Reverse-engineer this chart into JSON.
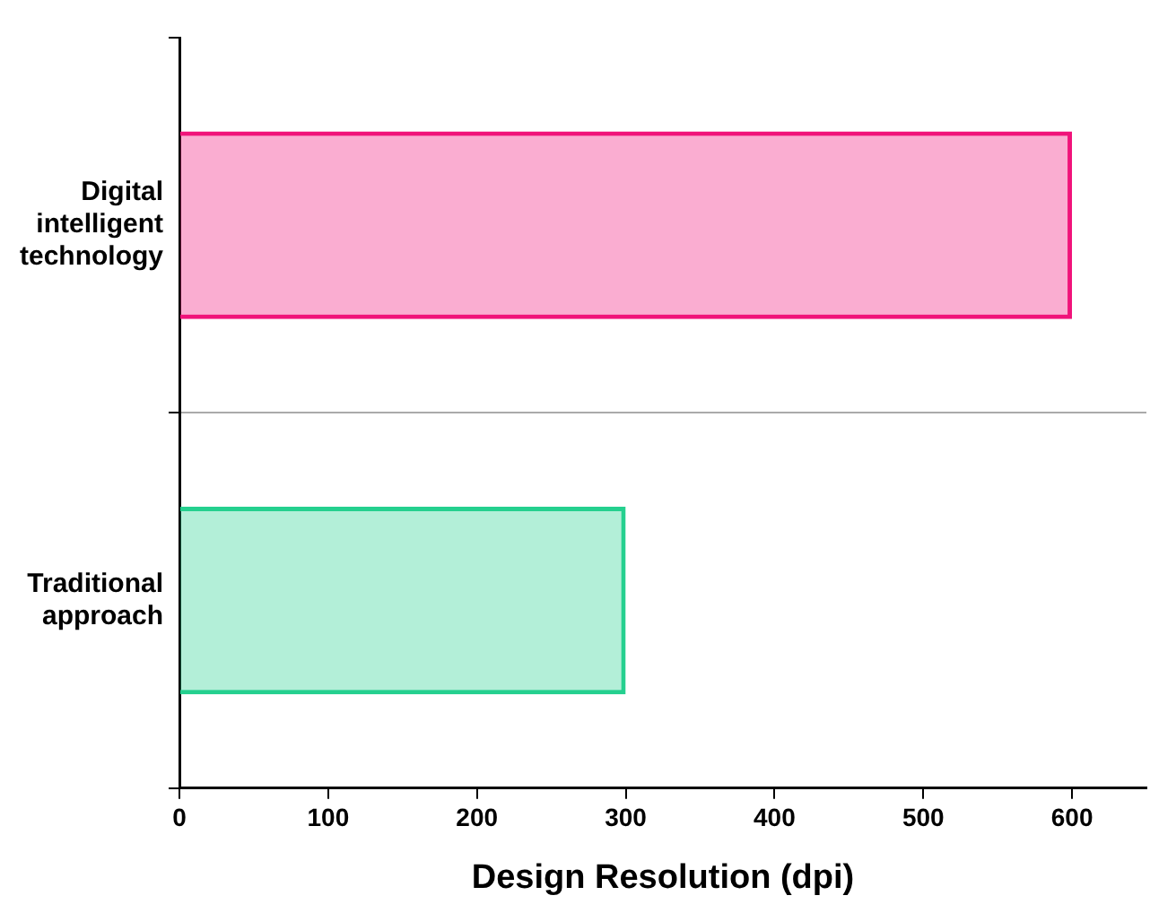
{
  "chart_data": {
    "type": "bar",
    "orientation": "horizontal",
    "xlabel": "Design Resolution (dpi)",
    "categories": [
      "Digital intelligent technology",
      "Traditional approach"
    ],
    "values": [
      600,
      300
    ],
    "colors": [
      "#f0137a",
      "#25d08f"
    ],
    "xlim": [
      0,
      650
    ],
    "xticks": [
      0,
      100,
      200,
      300,
      400,
      500,
      600
    ],
    "grid": "y",
    "legend": false
  }
}
